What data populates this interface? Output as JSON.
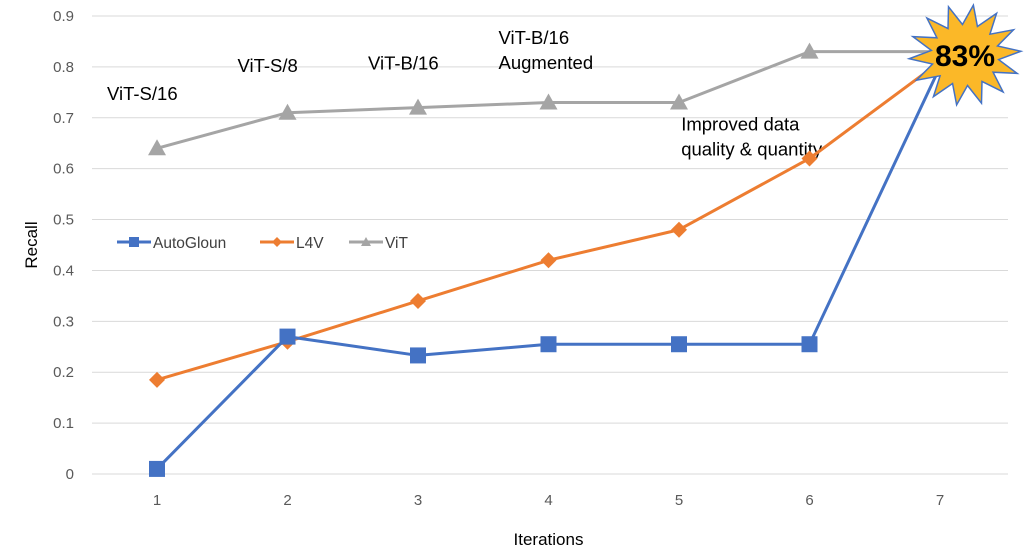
{
  "chart_data": {
    "type": "line",
    "title": "",
    "xlabel": "Iterations",
    "ylabel": "Recall",
    "x": [
      1,
      2,
      3,
      4,
      5,
      6,
      7
    ],
    "x_tick_labels": [
      "1",
      "2",
      "3",
      "4",
      "5",
      "6",
      "7"
    ],
    "ylim": [
      0,
      0.9
    ],
    "y_ticks": [
      0,
      0.1,
      0.2,
      0.3,
      0.4,
      0.5,
      0.6,
      0.7,
      0.8,
      0.9
    ],
    "y_tick_labels": [
      "0",
      "0.1",
      "0.2",
      "0.3",
      "0.4",
      "0.5",
      "0.6",
      "0.7",
      "0.8",
      "0.9"
    ],
    "grid": "horizontal",
    "legend_position": "middle-left",
    "series": [
      {
        "name": "AutoGloun",
        "color": "#4472C4",
        "marker": "square",
        "values": [
          0.01,
          0.27,
          0.233,
          0.255,
          0.255,
          0.255,
          0.8
        ]
      },
      {
        "name": "L4V",
        "color": "#ED7D31",
        "marker": "diamond",
        "values": [
          0.185,
          0.26,
          0.34,
          0.42,
          0.48,
          0.62,
          0.81
        ]
      },
      {
        "name": "ViT",
        "color": "#A5A5A5",
        "marker": "triangle",
        "values": [
          0.64,
          0.71,
          0.72,
          0.73,
          0.73,
          0.83,
          0.83
        ]
      }
    ],
    "annotations": [
      {
        "lines": [
          "ViT-S/16"
        ],
        "x": 1,
        "y": 0.735
      },
      {
        "lines": [
          "ViT-S/8"
        ],
        "x": 2,
        "y": 0.79
      },
      {
        "lines": [
          "ViT-B/16"
        ],
        "x": 3,
        "y": 0.795
      },
      {
        "lines": [
          "ViT-B/16",
          "Augmented"
        ],
        "x": 4,
        "y": 0.845
      },
      {
        "lines": [
          "Improved data",
          "quality & quantity"
        ],
        "x": 5.4,
        "y": 0.675
      }
    ],
    "callout": {
      "text": "83%",
      "x": 7,
      "y": 0.83,
      "fill": "#FBB828",
      "stroke": "#4472C4"
    }
  }
}
